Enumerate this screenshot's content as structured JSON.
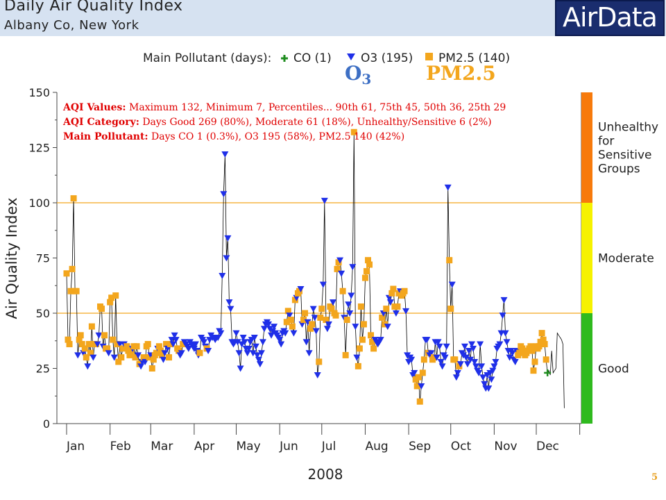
{
  "header": {
    "title": "Daily Air Quality Index",
    "subtitle": "Albany Co, New York",
    "logo": "AirData"
  },
  "slide_number": "5",
  "overlay_labels": {
    "o3": "O",
    "o3_sub": "3",
    "pm25": "PM2.5"
  },
  "colors": {
    "good": "#2fba1e",
    "moderate": "#f6f200",
    "usg": "#f77a0c",
    "o3_marker": "#1f2fe8",
    "pm25_marker": "#f3a61d",
    "co_marker": "#1e8c1e",
    "threshold_line": "#f3a61d"
  },
  "chart_data": {
    "type": "scatter",
    "ylabel": "Air Quality Index",
    "xlabel": "2008",
    "ylim": [
      0,
      150
    ],
    "yticks": [
      0,
      25,
      50,
      75,
      100,
      125,
      150
    ],
    "months": [
      "Jan",
      "Feb",
      "Mar",
      "Apr",
      "May",
      "Jun",
      "Jul",
      "Aug",
      "Sep",
      "Oct",
      "Nov",
      "Dec"
    ],
    "thresholds": [
      50,
      100
    ],
    "categories": [
      {
        "name": "Good",
        "range": [
          0,
          50
        ]
      },
      {
        "name": "Moderate",
        "range": [
          50,
          100
        ]
      },
      {
        "name": "Unhealthy for Sensitive Groups",
        "lines": [
          "Unhealthy",
          "for",
          "Sensitive",
          "Groups"
        ],
        "range": [
          100,
          150
        ]
      }
    ],
    "legend": {
      "prefix": "Main Pollutant (days):",
      "items": [
        {
          "key": "co",
          "label": "CO (1)"
        },
        {
          "key": "o3",
          "label": "O3 (195)"
        },
        {
          "key": "pm25",
          "label": "PM2.5 (140)"
        }
      ],
      "placement": "top-center"
    },
    "annotations": [
      {
        "bold": "AQI Values:",
        "text": " Maximum 132, Minimum 7, Percentiles... 90th 61, 75th 45, 50th 36, 25th 29"
      },
      {
        "bold": "AQI Category:",
        "text": " Days Good 269 (80%), Moderate 61 (18%), Unhealthy/Sensitive 6 (2%)"
      },
      {
        "bold": "Main Pollutant:",
        "text": " Days CO 1 (0.3%), O3 195 (58%), PM2.5 140 (42%)"
      }
    ],
    "day_start": 1,
    "pollutant_codes": {
      "O": "O3",
      "P": "PM2.5",
      "C": "CO"
    },
    "series_values": [
      68,
      38,
      36,
      60,
      70,
      102,
      60,
      60,
      31,
      38,
      40,
      36,
      32,
      34,
      30,
      26,
      36,
      32,
      44,
      30,
      36,
      36,
      36,
      40,
      53,
      52,
      35,
      40,
      34,
      34,
      32,
      55,
      57,
      38,
      30,
      58,
      36,
      28,
      36,
      30,
      34,
      36,
      35,
      35,
      33,
      31,
      32,
      34,
      35,
      30,
      35,
      31,
      27,
      26,
      28,
      30,
      28,
      35,
      36,
      30,
      31,
      25,
      29,
      31,
      32,
      34,
      35,
      33,
      31,
      29,
      32,
      36,
      34,
      30,
      36,
      38,
      36,
      40,
      38,
      34,
      33,
      31,
      32,
      36,
      37,
      36,
      35,
      34,
      37,
      36,
      35,
      34,
      36,
      33,
      31,
      32,
      39,
      38,
      37,
      35,
      34,
      33,
      38,
      40,
      39,
      39,
      38,
      39,
      39,
      42,
      41,
      67,
      104,
      122,
      75,
      84,
      55,
      52,
      37,
      36,
      37,
      41,
      37,
      32,
      25,
      36,
      39,
      37,
      34,
      32,
      34,
      37,
      38,
      32,
      39,
      35,
      31,
      29,
      27,
      32,
      37,
      43,
      45,
      46,
      45,
      43,
      40,
      42,
      44,
      41,
      40,
      39,
      38,
      36,
      41,
      42,
      41,
      46,
      51,
      49,
      47,
      44,
      41,
      56,
      57,
      59,
      60,
      61,
      45,
      47,
      50,
      37,
      46,
      32,
      43,
      45,
      52,
      48,
      42,
      22,
      28,
      48,
      52,
      63,
      101,
      47,
      43,
      45,
      53,
      52,
      55,
      50,
      49,
      70,
      73,
      74,
      68,
      60,
      48,
      31,
      47,
      54,
      50,
      58,
      71,
      132,
      44,
      30,
      26,
      34,
      53,
      38,
      45,
      66,
      69,
      74,
      72,
      40,
      37,
      34,
      38,
      37,
      36,
      37,
      38,
      48,
      50,
      45,
      52,
      44,
      57,
      55,
      59,
      61,
      53,
      50,
      53,
      59,
      60,
      58,
      59,
      60,
      51,
      31,
      28,
      30,
      29,
      22,
      23,
      20,
      17,
      21,
      10,
      17,
      23,
      29,
      38,
      38,
      32,
      31,
      32,
      29,
      30,
      37,
      30,
      37,
      35,
      28,
      26,
      31,
      30,
      35,
      107,
      74,
      52,
      63,
      29,
      29,
      21,
      23,
      26,
      27,
      32,
      31,
      35,
      30,
      27,
      33,
      29,
      36,
      34,
      28,
      26,
      24,
      23,
      36,
      26,
      21,
      18,
      16,
      22,
      16,
      23,
      20,
      24,
      26,
      28,
      34,
      35,
      36,
      41,
      49,
      56,
      41,
      37,
      33,
      30,
      33,
      32,
      29,
      28,
      33,
      31,
      32,
      35,
      34,
      33,
      31,
      32,
      33,
      34,
      35,
      33,
      24,
      28,
      35,
      34,
      35,
      37,
      41,
      38,
      36,
      29,
      23,
      24,
      22,
      33,
      23,
      24,
      25,
      41,
      40,
      39,
      38,
      36,
      7
    ],
    "series_codes": "PPPPPPPPOPPPOPPOPPPOPPOOPPOPPPOPPPOPPPOPPOOPPPPOPPPOPOOPOPPPOPPPPOPPPOOPOPPOOOOPPOOPOOOOOOOOOOOPOOOOPOOOOOOOOOOOOOOOOOOOOOOOOOOOOOOOOOOOOOOOOOOOOOOOOOOOOOOOOPPOPPOPOPPOOPPOOOPPOOOOPPPOOPOOPPOPPPPOOPOPPOOOOPOOPPPPPPPPPPPPOOOOOPOPPOOOPPPOPPOPPPOOOOOOOPPPPOPPOOPOOPPOOOOOOOOOOPPOPPOOPOOOOOOOOOOOOOOOOOOOOOOOOOOOOOOOOOOOOOOOOOPPPPPPPPPPPPPPPPPPPPPC"
  }
}
